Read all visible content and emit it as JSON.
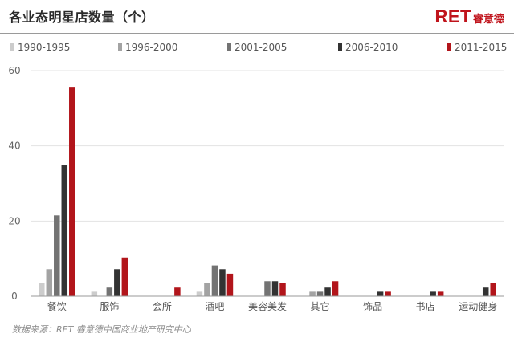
{
  "header": {
    "title": "各业态明星店数量（个）",
    "brand_latin": "RET",
    "brand_cjk": "睿意德"
  },
  "footer": {
    "source": "数据来源：RET 睿意德中国商业地产研究中心"
  },
  "colors": {
    "series": [
      "#cccccc",
      "#a3a3a3",
      "#737373",
      "#333333",
      "#b2151b"
    ],
    "grid": "#e3e3e3",
    "axis": "#9a9a9a",
    "brand": "#c0141c"
  },
  "chart_data": {
    "type": "bar",
    "categories": [
      "餐饮",
      "服饰",
      "会所",
      "酒吧",
      "美容美发",
      "其它",
      "饰品",
      "书店",
      "运动健身"
    ],
    "series": [
      {
        "name": "1990-1995",
        "values": [
          3.5,
          1.2,
          0,
          1.2,
          0,
          0,
          0,
          0,
          0
        ]
      },
      {
        "name": "1996-2000",
        "values": [
          7.2,
          0,
          0,
          3.5,
          0,
          1.2,
          0,
          0,
          0
        ]
      },
      {
        "name": "2001-2005",
        "values": [
          21.5,
          2.3,
          0,
          8.2,
          4,
          1.2,
          0,
          0,
          0
        ]
      },
      {
        "name": "2006-2010",
        "values": [
          34.8,
          7.2,
          0,
          7.2,
          4,
          2.3,
          1.2,
          1.2,
          2.3
        ]
      },
      {
        "name": "2011-2015",
        "values": [
          55.7,
          10.3,
          2.3,
          6,
          3.5,
          4,
          1.2,
          1.2,
          3.5
        ]
      }
    ],
    "yticks": [
      0,
      20,
      40,
      60
    ],
    "ylim": [
      0,
      60
    ],
    "grid": true,
    "legend_position": "top"
  }
}
